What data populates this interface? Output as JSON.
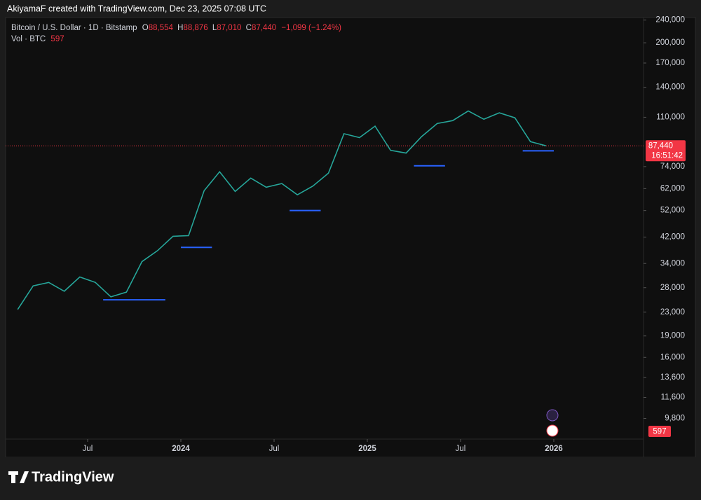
{
  "chart_data": {
    "type": "line",
    "title": "AkiyamaF created with TradingView.com, Dec 23, 2025 07:08 UTC",
    "symbol": "Bitcoin / U.S. Dollar · 1D · Bitstamp",
    "ohlc": {
      "open": {
        "tag": "O",
        "value": 88554,
        "label": "88,554"
      },
      "high": {
        "tag": "H",
        "value": 88876,
        "label": "88,876"
      },
      "low": {
        "tag": "L",
        "value": 87010,
        "label": "87,010"
      },
      "close": {
        "tag": "C",
        "value": 87440,
        "label": "87,440"
      },
      "change": "−1,099 (−1.24%)"
    },
    "volume": {
      "label": "Vol · BTC",
      "last": 597
    },
    "last_price": {
      "value": 87440,
      "label": "87,440",
      "countdown": "16:51:42"
    },
    "x": [
      "2023-02",
      "2023-03",
      "2023-04",
      "2023-05",
      "2023-06",
      "2023-07",
      "2023-08",
      "2023-09",
      "2023-10",
      "2023-11",
      "2023-12",
      "2024-01",
      "2024-02",
      "2024-03",
      "2024-04",
      "2024-05",
      "2024-06",
      "2024-07",
      "2024-08",
      "2024-09",
      "2024-10",
      "2024-11",
      "2024-12",
      "2025-01",
      "2025-02",
      "2025-03",
      "2025-04",
      "2025-05",
      "2025-06",
      "2025-07",
      "2025-08",
      "2025-09",
      "2025-10",
      "2025-11",
      "2025-12"
    ],
    "series": [
      {
        "name": "Bitcoin / U.S. Dollar",
        "color": "#26a69a",
        "values": [
          23500,
          28400,
          29200,
          27200,
          30500,
          29200,
          26000,
          27000,
          34500,
          37700,
          42300,
          42500,
          61000,
          71000,
          60600,
          67500,
          62700,
          64600,
          59000,
          63300,
          70200,
          96400,
          93400,
          102400,
          84300,
          82500,
          94200,
          104600,
          107100,
          115700,
          108200,
          114000,
          109500,
          90400,
          87440
        ]
      }
    ],
    "levels": [
      {
        "value": 25400,
        "from": "2023-08",
        "to": "2023-12"
      },
      {
        "value": 38700,
        "from": "2024-01",
        "to": "2024-03"
      },
      {
        "value": 52000,
        "from": "2024-08",
        "to": "2024-10"
      },
      {
        "value": 74500,
        "from": "2025-04",
        "to": "2025-06"
      },
      {
        "value": 84000,
        "from": "2025-11",
        "to": "2026-01"
      }
    ],
    "level_color": "#2962ff",
    "log_scale": true,
    "grid": false,
    "ylim": [
      8300,
      245000
    ],
    "yticks": [
      {
        "value": 240000,
        "label": "240,000"
      },
      {
        "value": 200000,
        "label": "200,000"
      },
      {
        "value": 170000,
        "label": "170,000"
      },
      {
        "value": 140000,
        "label": "140,000"
      },
      {
        "value": 110000,
        "label": "110,000"
      },
      {
        "value": 74000,
        "label": "74,000"
      },
      {
        "value": 62000,
        "label": "62,000"
      },
      {
        "value": 52000,
        "label": "52,000"
      },
      {
        "value": 42000,
        "label": "42,000"
      },
      {
        "value": 34000,
        "label": "34,000"
      },
      {
        "value": 28000,
        "label": "28,000"
      },
      {
        "value": 23000,
        "label": "23,000"
      },
      {
        "value": 19000,
        "label": "19,000"
      },
      {
        "value": 16000,
        "label": "16,000"
      },
      {
        "value": 13600,
        "label": "13,600"
      },
      {
        "value": 11600,
        "label": "11,600"
      },
      {
        "value": 9800,
        "label": "9,800"
      }
    ],
    "xticks": [
      {
        "value": "2023-07",
        "label": "Jul"
      },
      {
        "value": "2024-01",
        "label": "2024"
      },
      {
        "value": "2024-07",
        "label": "Jul"
      },
      {
        "value": "2025-01",
        "label": "2025"
      },
      {
        "value": "2025-07",
        "label": "Jul"
      },
      {
        "value": "2026-01",
        "label": "2026"
      }
    ],
    "brand": "TradingView"
  }
}
